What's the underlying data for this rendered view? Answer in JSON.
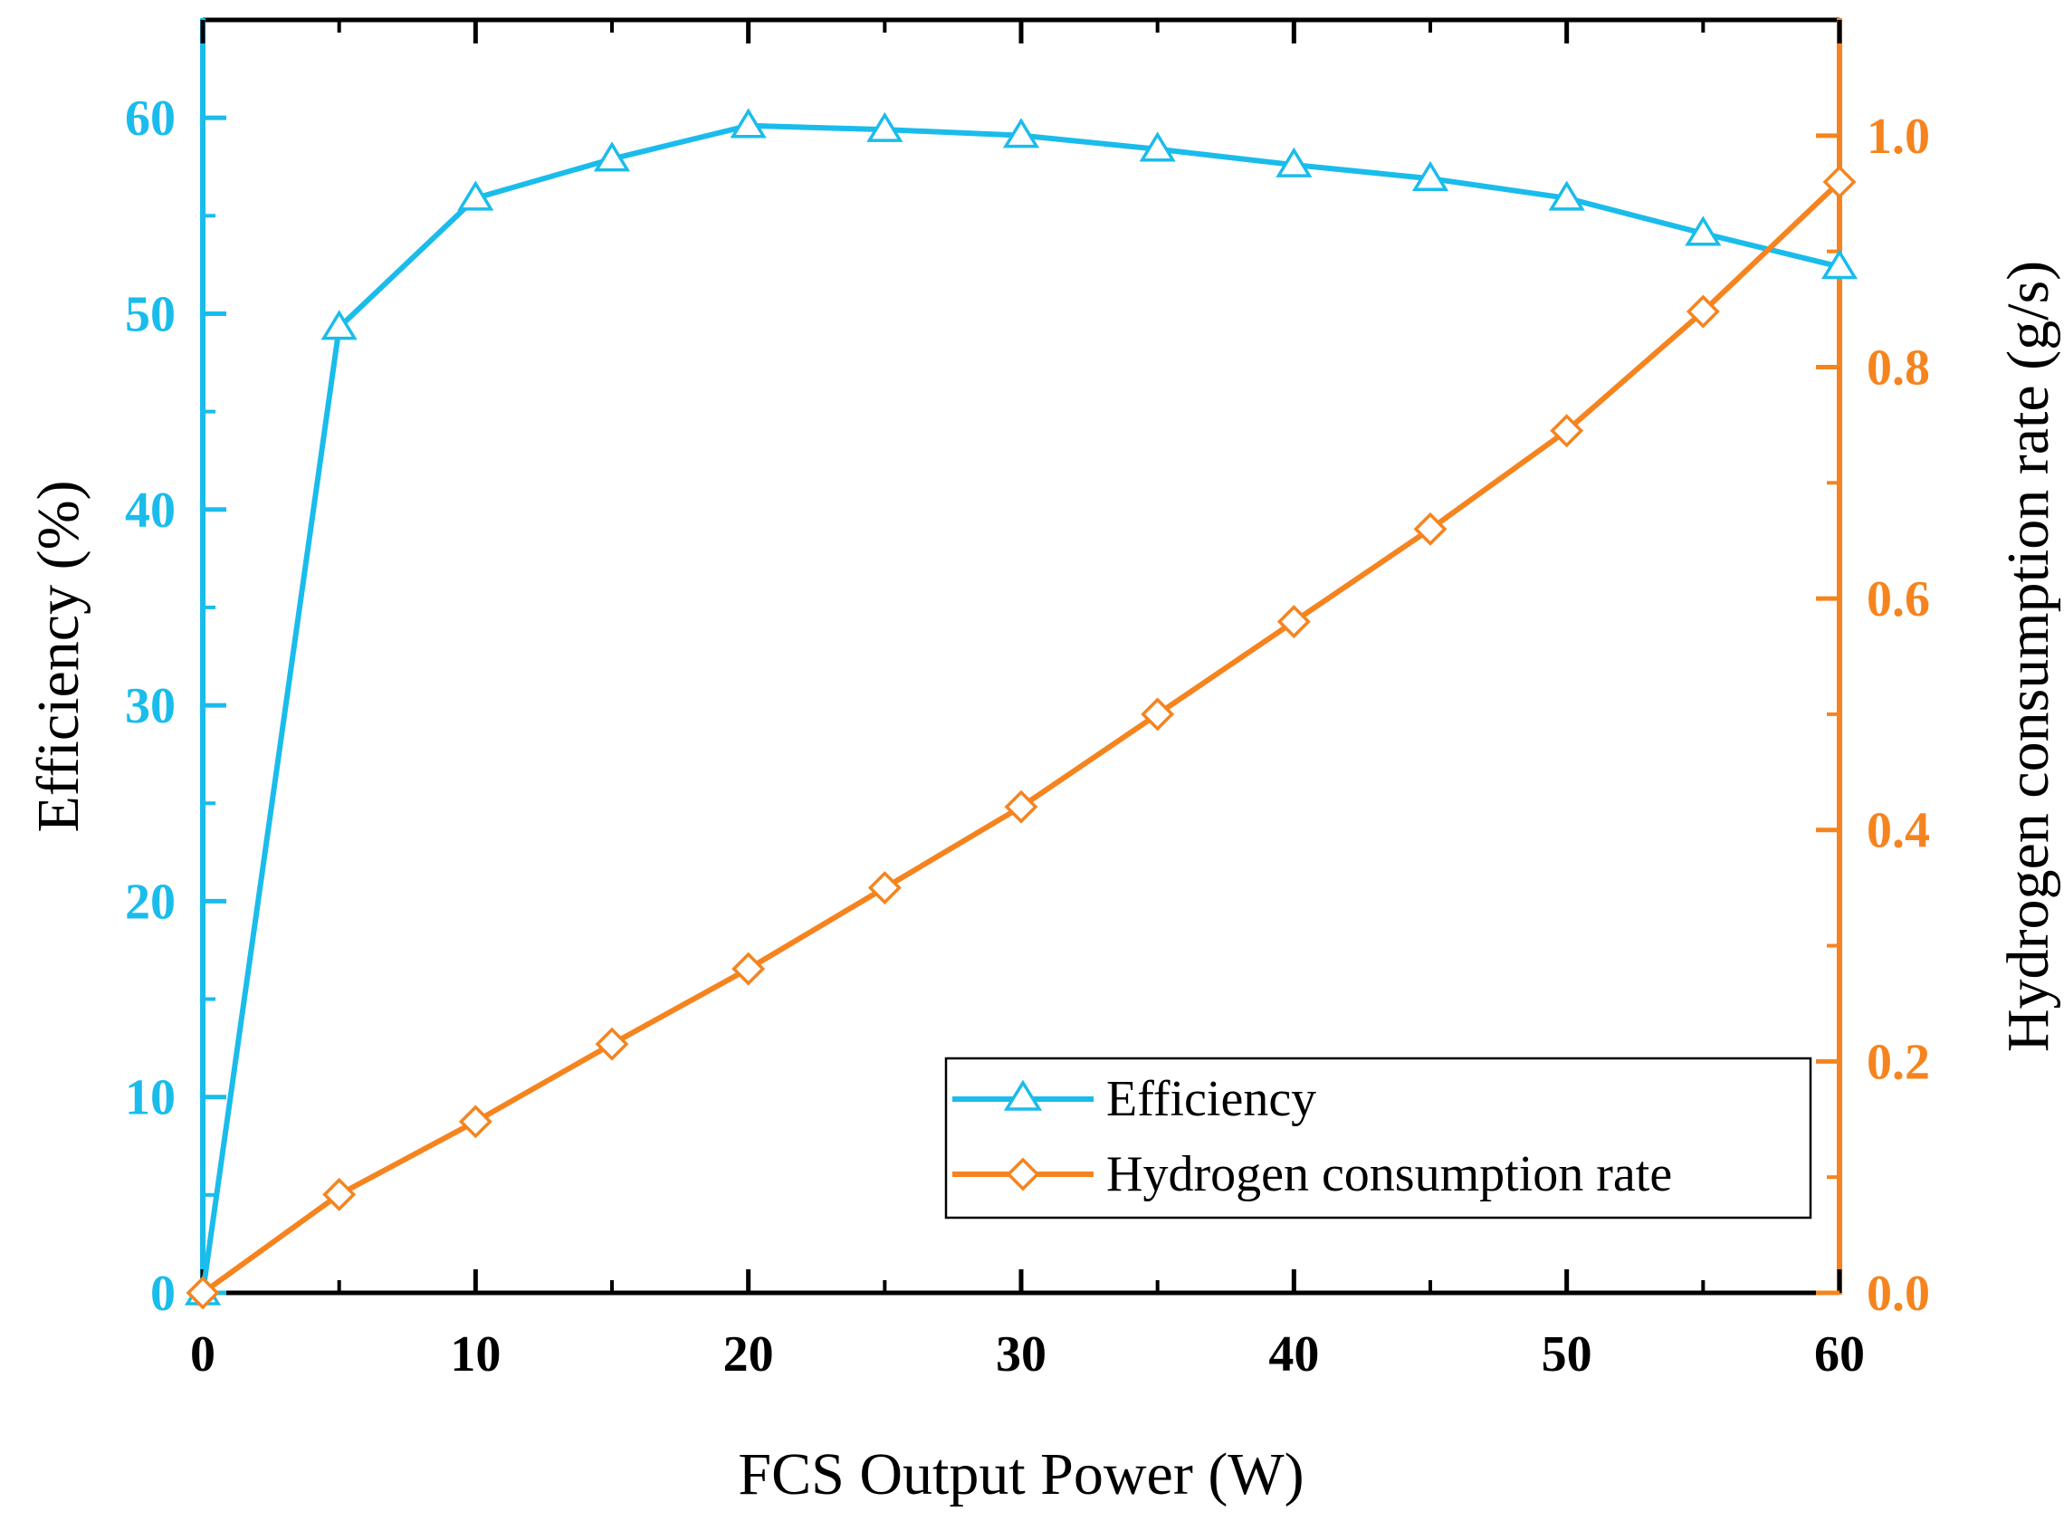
{
  "chart_data": {
    "type": "line",
    "title": "",
    "xlabel": "FCS Output Power (W)",
    "ylabel_left": "Efficiency (%)",
    "ylabel_right": "Hydrogen consumption rate (g/s)",
    "xlim": [
      0,
      60
    ],
    "ylim_left": [
      0,
      65
    ],
    "ylim_right": [
      0,
      1.1
    ],
    "x_ticks": [
      0,
      10,
      20,
      30,
      40,
      50,
      60
    ],
    "x_tick_labels": [
      "0",
      "10",
      "20",
      "30",
      "40",
      "50",
      "60"
    ],
    "y_left_ticks": [
      0,
      10,
      20,
      30,
      40,
      50,
      60
    ],
    "y_left_tick_labels": [
      "0",
      "10",
      "20",
      "30",
      "40",
      "50",
      "60"
    ],
    "y_right_ticks": [
      0,
      0.2,
      0.4,
      0.6,
      0.8,
      1.0
    ],
    "y_right_tick_labels": [
      "0.0",
      "0.2",
      "0.4",
      "0.6",
      "0.8",
      "1.0"
    ],
    "grid": false,
    "legend_position": "bottom-right",
    "x": [
      0,
      5,
      10,
      15,
      20,
      25,
      30,
      35,
      40,
      45,
      50,
      55,
      60
    ],
    "series": [
      {
        "name": "Efficiency",
        "axis": "left",
        "marker": "triangle",
        "color": "#1ABCEB",
        "values": [
          0,
          49.3,
          55.9,
          57.9,
          59.6,
          59.4,
          59.1,
          58.4,
          57.6,
          56.9,
          55.9,
          54.1,
          52.4
        ]
      },
      {
        "name": "Hydrogen consumption rate",
        "axis": "right",
        "marker": "diamond",
        "color": "#F5841F",
        "values": [
          0,
          0.085,
          0.148,
          0.215,
          0.28,
          0.35,
          0.42,
          0.5,
          0.58,
          0.66,
          0.745,
          0.848,
          0.96
        ]
      }
    ]
  },
  "colors": {
    "left_axis": "#1ABCEB",
    "right_axis": "#F5841F",
    "frame": "#000000"
  }
}
